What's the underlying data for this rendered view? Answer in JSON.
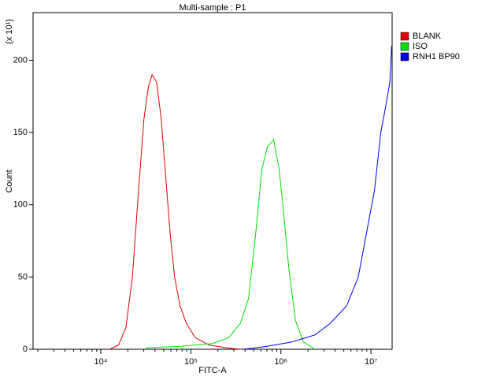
{
  "chart_data": {
    "type": "line",
    "title": "Multi-sample : P1",
    "x_label": "FITC-A",
    "y_label": "Count",
    "y_multiplier": "(x 10¹)",
    "xscale": "log",
    "xlim": [
      1770,
      17200000
    ],
    "ylim": [
      0,
      233
    ],
    "xticks": [
      {
        "value": 10000,
        "label": "10⁴"
      },
      {
        "value": 100000,
        "label": "10⁵"
      },
      {
        "value": 1000000,
        "label": "10⁶"
      },
      {
        "value": 10000000,
        "label": "10⁷"
      }
    ],
    "xminorticks": [
      2000,
      3000,
      4000,
      5000,
      6000,
      7000,
      8000,
      9000,
      20000,
      30000,
      40000,
      50000,
      60000,
      70000,
      80000,
      90000,
      200000,
      300000,
      400000,
      500000,
      600000,
      700000,
      800000,
      900000,
      2000000,
      3000000,
      4000000,
      5000000,
      6000000,
      7000000,
      8000000,
      9000000
    ],
    "yticks": [
      0,
      50,
      100,
      150,
      200
    ],
    "series": [
      {
        "name": "BLANK",
        "color": "#e00000",
        "x": [
          12600,
          15800,
          19000,
          22400,
          26300,
          30200,
          33900,
          37200,
          41700,
          46800,
          52500,
          58900,
          66100,
          75900,
          89100,
          112000,
          158000,
          251000,
          355000
        ],
        "values": [
          0,
          3,
          15,
          50,
          110,
          160,
          182,
          190,
          185,
          160,
          120,
          80,
          50,
          30,
          18,
          8,
          3,
          1,
          0
        ]
      },
      {
        "name": "ISO",
        "color": "#00e000",
        "x": [
          31500,
          77600,
          174000,
          263000,
          355000,
          437000,
          525000,
          617000,
          708000,
          832000,
          955000,
          1070000,
          1230000,
          1450000,
          1780000,
          2400000
        ],
        "values": [
          1,
          2,
          4,
          8,
          18,
          35,
          80,
          125,
          140,
          145,
          125,
          95,
          55,
          20,
          5,
          0
        ]
      },
      {
        "name": "RNH1 BP90",
        "color": "#0000e0",
        "x": [
          389000,
          708000,
          1320000,
          2400000,
          3550000,
          5370000,
          7240000,
          8910000,
          10960000,
          12880000,
          14790000,
          16220000,
          16980000
        ],
        "values": [
          0,
          2,
          5,
          10,
          18,
          30,
          50,
          80,
          110,
          150,
          170,
          185,
          210
        ]
      }
    ]
  }
}
